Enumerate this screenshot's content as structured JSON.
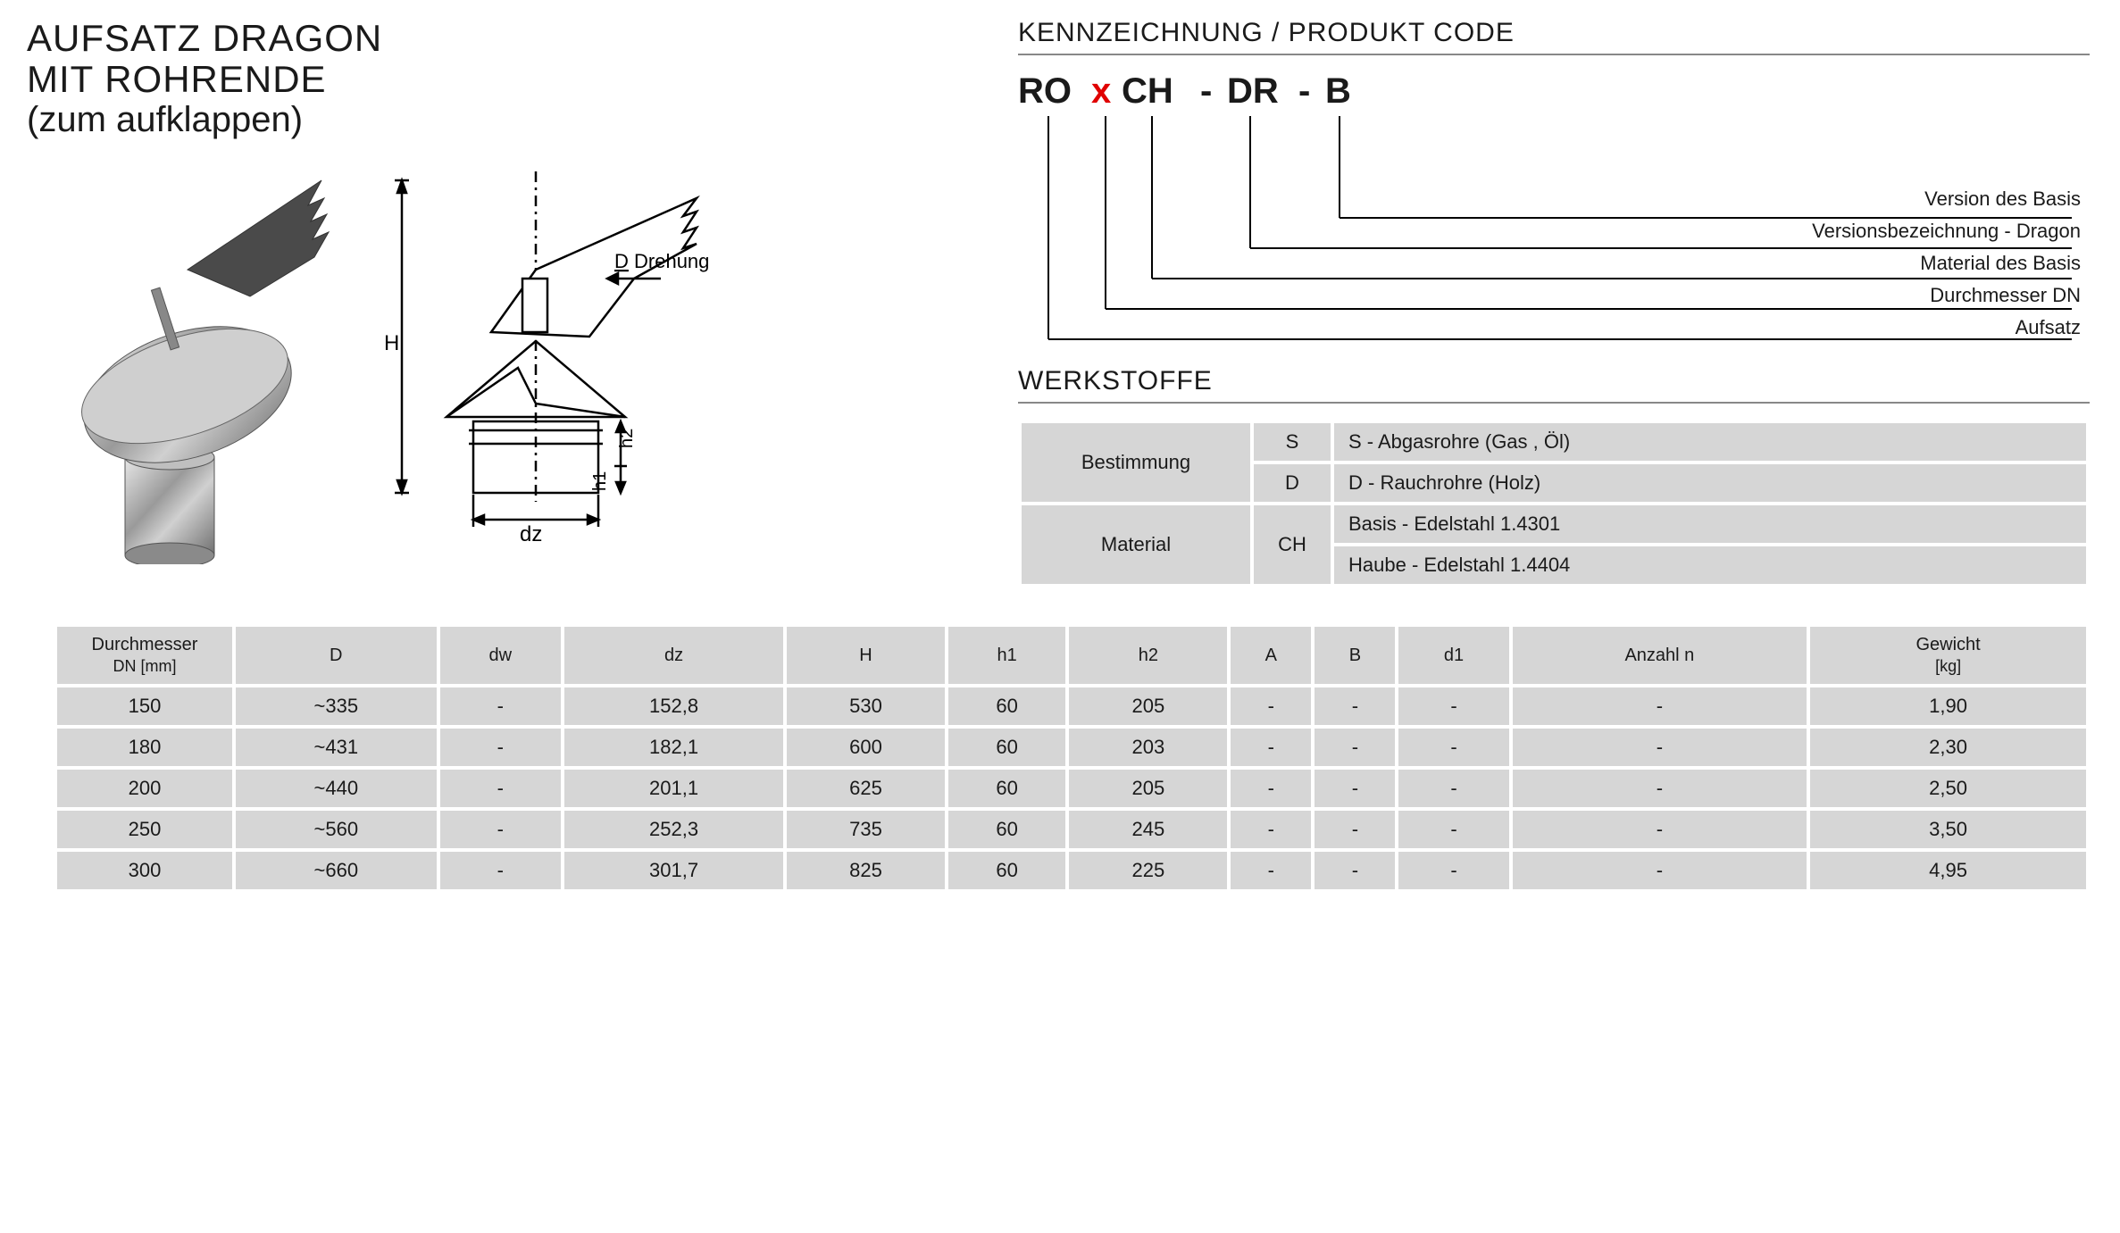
{
  "header": {
    "line1": "AUFSATZ DRAGON",
    "line2": "MIT ROHRENDE",
    "line3": "(zum aufklappen)"
  },
  "code_section": {
    "title": "KENNZEICHNUNG /  PRODUKT CODE",
    "parts": [
      "RO",
      "x",
      "CH",
      "-",
      "DR",
      "-",
      "B"
    ],
    "legend": [
      "Version des Basis",
      "Versionsbezeichnung - Dragon",
      "Material des Basis",
      "Durchmesser DN",
      "Aufsatz"
    ]
  },
  "diagram": {
    "label_D": "D",
    "label_Drehung": "Drehung",
    "label_H": "H",
    "label_h1": "h1",
    "label_h2": "h2",
    "label_dz": "dz"
  },
  "werkstoffe": {
    "title": "WERKSTOFFE",
    "rows": [
      {
        "head": "Bestimmung",
        "code": "S",
        "desc": "S - Abgasrohre (Gas , Öl)"
      },
      {
        "head": "",
        "code": "D",
        "desc": "D - Rauchrohre (Holz)"
      },
      {
        "head": "Material",
        "code": "CH",
        "desc": "Basis - Edelstahl 1.4301"
      },
      {
        "head": "",
        "code": "",
        "desc": "Haube - Edelstahl 1.4404"
      }
    ]
  },
  "dim_table": {
    "columns": [
      "Durchmesser\nDN [mm]",
      "D",
      "dw",
      "dz",
      "H",
      "h1",
      "h2",
      "A",
      "B",
      "d1",
      "Anzahl n",
      "Gewicht\n[kg]"
    ],
    "rows": [
      [
        "150",
        "~335",
        "-",
        "152,8",
        "530",
        "60",
        "205",
        "-",
        "-",
        "-",
        "-",
        "1,90"
      ],
      [
        "180",
        "~431",
        "-",
        "182,1",
        "600",
        "60",
        "203",
        "-",
        "-",
        "-",
        "-",
        "2,30"
      ],
      [
        "200",
        "~440",
        "-",
        "201,1",
        "625",
        "60",
        "205",
        "-",
        "-",
        "-",
        "-",
        "2,50"
      ],
      [
        "250",
        "~560",
        "-",
        "252,3",
        "735",
        "60",
        "245",
        "-",
        "-",
        "-",
        "-",
        "3,50"
      ],
      [
        "300",
        "~660",
        "-",
        "301,7",
        "825",
        "60",
        "225",
        "-",
        "-",
        "-",
        "-",
        "4,95"
      ]
    ]
  },
  "colors": {
    "accent_red": "#e00000",
    "rule_grey": "#888888",
    "cell_grey": "#d6d6d6",
    "text": "#1a1a1a",
    "bg": "#ffffff"
  }
}
